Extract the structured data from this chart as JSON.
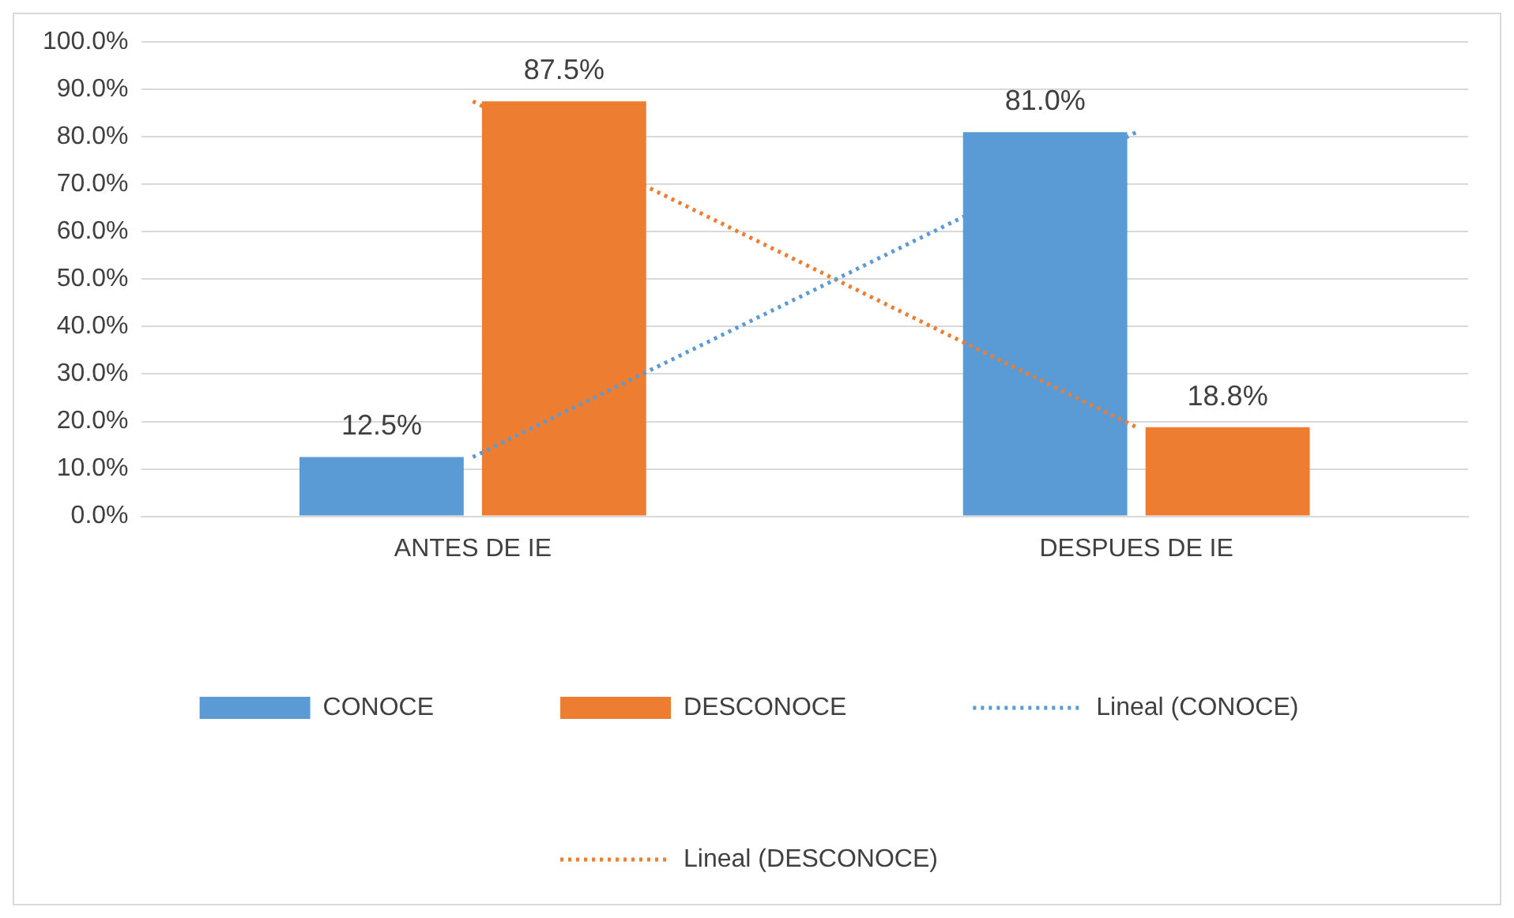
{
  "chart_data": {
    "type": "bar",
    "categories": [
      "ANTES DE IE",
      "DESPUES DE IE"
    ],
    "series": [
      {
        "name": "CONOCE",
        "color": "#5b9bd5",
        "values": [
          12.5,
          81.0
        ],
        "value_labels": [
          "12.5%",
          "81.0%"
        ]
      },
      {
        "name": "DESCONOCE",
        "color": "#ed7d31",
        "values": [
          87.5,
          18.8
        ],
        "value_labels": [
          "87.5%",
          "18.8%"
        ]
      },
      {
        "name": "Lineal (CONOCE)",
        "type": "line",
        "color": "#5b9bd5",
        "values": [
          12.5,
          81.0
        ],
        "line_style": "dotted",
        "marker": "none"
      },
      {
        "name": "Lineal (DESCONOCE)",
        "type": "line",
        "color": "#ed7d31",
        "values": [
          87.5,
          18.8
        ],
        "line_style": "dotted",
        "marker": "none"
      }
    ],
    "ylim": [
      0,
      100
    ],
    "yticks": [
      {
        "value": 0,
        "label": "0.0%"
      },
      {
        "value": 10,
        "label": "10.0%"
      },
      {
        "value": 20,
        "label": "20.0%"
      },
      {
        "value": 30,
        "label": "30.0%"
      },
      {
        "value": 40,
        "label": "40.0%"
      },
      {
        "value": 50,
        "label": "50.0%"
      },
      {
        "value": 60,
        "label": "60.0%"
      },
      {
        "value": 70,
        "label": "70.0%"
      },
      {
        "value": 80,
        "label": "80.0%"
      },
      {
        "value": 90,
        "label": "90.0%"
      },
      {
        "value": 100,
        "label": "100.0%"
      }
    ],
    "grid": "y",
    "legend": "bottom"
  }
}
